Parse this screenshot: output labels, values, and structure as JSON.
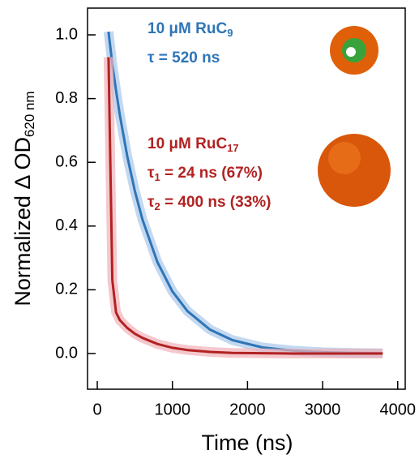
{
  "chart_data": {
    "type": "line",
    "x_label": "Time (ns)",
    "y_label": [
      "Normalized Δ OD",
      "620 nm"
    ],
    "x": [
      150,
      200,
      250,
      300,
      400,
      500,
      600,
      800,
      1000,
      1200,
      1500,
      1800,
      2200,
      2600,
      3000,
      3400,
      3800
    ],
    "series": [
      {
        "name": "10 μM RuC9",
        "color": "#2e75b6",
        "halo": "#a9c8ea",
        "values": [
          1.01,
          0.908,
          0.825,
          0.749,
          0.618,
          0.51,
          0.421,
          0.287,
          0.195,
          0.133,
          0.075,
          0.042,
          0.019,
          0.009,
          0.004,
          0.002,
          0.001
        ]
      },
      {
        "name": "10 μM RuC17",
        "color": "#b22222",
        "halo": "#f0b0b8",
        "values": [
          0.93,
          0.23,
          0.129,
          0.105,
          0.08,
          0.062,
          0.049,
          0.03,
          0.018,
          0.011,
          0.005,
          0.002,
          0.001,
          0,
          0,
          0,
          0
        ]
      }
    ],
    "annotations": [
      {
        "color": "#2e75b6",
        "lines": [
          [
            "10 μM RuC",
            "9"
          ],
          [
            "τ = 520 ns"
          ]
        ]
      },
      {
        "color": "#b22222",
        "lines": [
          [
            "10 μM RuC",
            "17"
          ],
          [
            "τ",
            "1",
            " = 24 ns (67%)"
          ],
          [
            "τ",
            "2",
            " = 400 ns (33%)"
          ]
        ]
      }
    ],
    "xlim": [
      -130,
      4100
    ],
    "xticks": [
      0,
      1000,
      2000,
      3000,
      4000
    ],
    "ylim": [
      -0.112,
      1.084
    ],
    "yticks": [
      {
        "value": 0,
        "label": "0.0"
      },
      {
        "value": 0.2,
        "label": "0.2"
      },
      {
        "value": 0.4,
        "label": "0.4"
      },
      {
        "value": 0.6,
        "label": "0.6"
      },
      {
        "value": 0.8,
        "label": "0.8"
      },
      {
        "value": 1.0,
        "label": "1.0"
      }
    ]
  }
}
